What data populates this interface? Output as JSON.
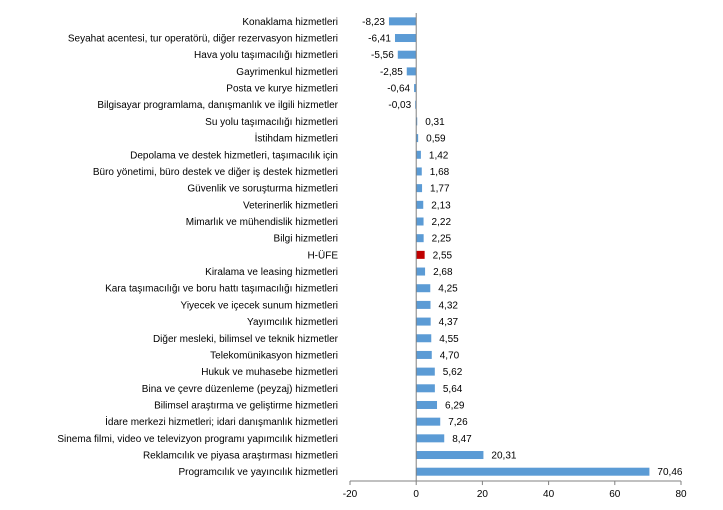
{
  "chart_data": {
    "type": "bar",
    "orientation": "horizontal",
    "title": "",
    "xlabel": "",
    "ylabel": "",
    "xlim": [
      -20,
      80
    ],
    "xticks": [
      -20,
      0,
      20,
      40,
      60,
      80
    ],
    "grid": false,
    "legend": "none",
    "colors": {
      "default": "#5b9bd5",
      "highlight": "#c00000",
      "axis": "#808080"
    },
    "highlight_category": "H-ÜFE",
    "categories": [
      "Konaklama hizmetleri",
      "Seyahat acentesi, tur operatörü, diğer rezervasyon hizmetleri",
      "Hava yolu taşımacılığı hizmetleri",
      "Gayrimenkul hizmetleri",
      "Posta ve kurye hizmetleri",
      "Bilgisayar programlama, danışmanlık ve ilgili hizmetler",
      "Su yolu taşımacılığı hizmetleri",
      "İstihdam hizmetleri",
      "Depolama ve destek hizmetleri, taşımacılık için",
      "Büro yönetimi, büro destek ve diğer iş destek hizmetleri",
      "Güvenlik ve soruşturma hizmetleri",
      "Veterinerlik hizmetleri",
      "Mimarlık ve mühendislik hizmetleri",
      "Bilgi hizmetleri",
      "H-ÜFE",
      "Kiralama ve leasing hizmetleri",
      "Kara taşımacılığı ve boru hattı taşımacılığı hizmetleri",
      "Yiyecek ve içecek sunum hizmetleri",
      "Yayımcılık hizmetleri",
      "Diğer mesleki, bilimsel ve teknik hizmetler",
      "Telekomünikasyon hizmetleri",
      "Hukuk ve muhasebe hizmetleri",
      "Bina ve çevre düzenleme (peyzaj) hizmetleri",
      "Bilimsel araştırma ve geliştirme hizmetleri",
      "İdare merkezi hizmetleri; idari danışmanlık hizmetleri",
      "Sinema filmi, video ve televizyon programı yapımcılık hizmetleri",
      "Reklamcılık ve piyasa araştırması hizmetleri",
      "Programcılık ve yayıncılık hizmetleri"
    ],
    "values": [
      -8.23,
      -6.41,
      -5.56,
      -2.85,
      -0.64,
      -0.03,
      0.31,
      0.59,
      1.42,
      1.68,
      1.77,
      2.13,
      2.22,
      2.25,
      2.55,
      2.68,
      4.25,
      4.32,
      4.37,
      4.55,
      4.7,
      5.62,
      5.64,
      6.29,
      7.26,
      8.47,
      20.31,
      70.46
    ],
    "value_labels": [
      "-8,23",
      "-6,41",
      "-5,56",
      "-2,85",
      "-0,64",
      "-0,03",
      "0,31",
      "0,59",
      "1,42",
      "1,68",
      "1,77",
      "2,13",
      "2,22",
      "2,25",
      "2,55",
      "2,68",
      "4,25",
      "4,32",
      "4,37",
      "4,55",
      "4,70",
      "5,62",
      "5,64",
      "6,29",
      "7,26",
      "8,47",
      "20,31",
      "70,46"
    ]
  }
}
